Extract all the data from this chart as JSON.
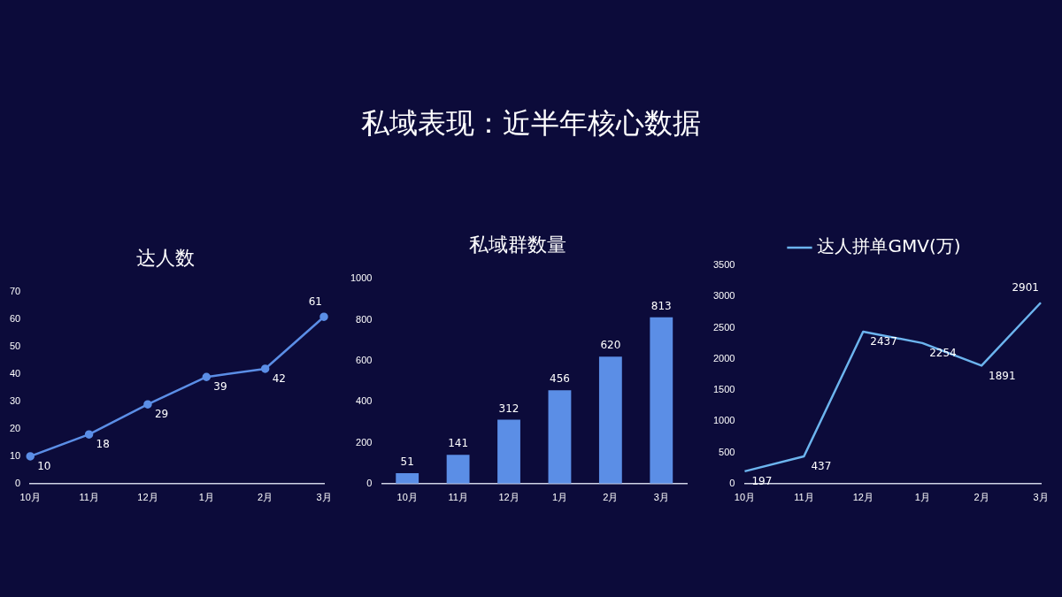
{
  "chart_data": [
    {
      "type": "other",
      "title": "私域表现：近半年核心数据"
    },
    {
      "type": "line",
      "title": "达人数",
      "categories": [
        "10月",
        "11月",
        "12月",
        "1月",
        "2月",
        "3月"
      ],
      "series": [
        {
          "color": "#5b8ee6",
          "values": [
            10,
            18,
            29,
            39,
            42,
            61
          ]
        }
      ],
      "ylim": [
        0,
        70
      ],
      "yticks": [
        0,
        10,
        20,
        30,
        40,
        50,
        60,
        70
      ],
      "grid": false,
      "legend": false,
      "marker": "circle",
      "data_labels": true
    },
    {
      "type": "bar",
      "title": "私域群数量",
      "categories": [
        "10月",
        "11月",
        "12月",
        "1月",
        "2月",
        "3月"
      ],
      "series": [
        {
          "color": "#5b8ee6",
          "values": [
            51,
            141,
            312,
            456,
            620,
            813
          ]
        }
      ],
      "ylim": [
        0,
        1000
      ],
      "yticks": [
        0,
        200,
        400,
        600,
        800,
        1000
      ],
      "grid": false,
      "legend": false,
      "data_labels": true
    },
    {
      "type": "line",
      "categories": [
        "10月",
        "11月",
        "12月",
        "1月",
        "2月",
        "3月"
      ],
      "series": [
        {
          "name": "达人拼单GMV(万)",
          "color": "#6cb4ee",
          "values": [
            197,
            437,
            2437,
            2254,
            1891,
            2901
          ]
        }
      ],
      "ylim": [
        0,
        3500
      ],
      "yticks": [
        0,
        500,
        1000,
        1500,
        2000,
        2500,
        3000,
        3500
      ],
      "grid": false,
      "legend": "top",
      "marker": "none",
      "data_labels": true
    }
  ]
}
